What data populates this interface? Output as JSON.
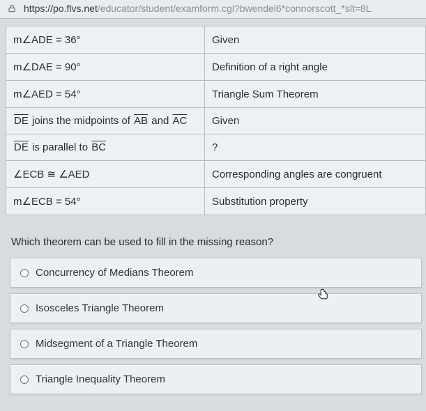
{
  "url": {
    "host": "https://po.flvs.net",
    "path": "/educator/student/examform.cgi?bwendel6*connorscott_*slt=8L"
  },
  "proof_table": {
    "rows": [
      {
        "statement_html": "m∠ADE = 36°",
        "reason": "Given"
      },
      {
        "statement_html": "m∠DAE = 90°",
        "reason": "Definition of a right angle"
      },
      {
        "statement_html": "m∠AED = 54°",
        "reason": "Triangle Sum Theorem"
      },
      {
        "statement_html": "<span class='ovl'>DE</span> joins the midpoints of <span class='ovl'>AB</span> and <span class='ovl'>AC</span>",
        "reason": "Given"
      },
      {
        "statement_html": "<span class='ovl'>DE</span> is parallel to <span class='ovl'>BC</span>",
        "reason": "?"
      },
      {
        "statement_html": "∠ECB ≅ ∠AED",
        "reason": "Corresponding angles are congruent"
      },
      {
        "statement_html": "m∠ECB = 54°",
        "reason": "Substitution property"
      }
    ]
  },
  "question": "Which theorem can be used to fill in the missing reason?",
  "options": [
    "Concurrency of Medians Theorem",
    "Isosceles Triangle Theorem",
    "Midsegment of a Triangle Theorem",
    "Triangle Inequality Theorem"
  ],
  "colors": {
    "page_bg": "#d8dcdf",
    "cell_bg": "#eef1f3",
    "border": "#b7bcc0",
    "text": "#2b2b2b",
    "option_bg": "#edf0f3",
    "option_border": "#bcc1c6"
  }
}
